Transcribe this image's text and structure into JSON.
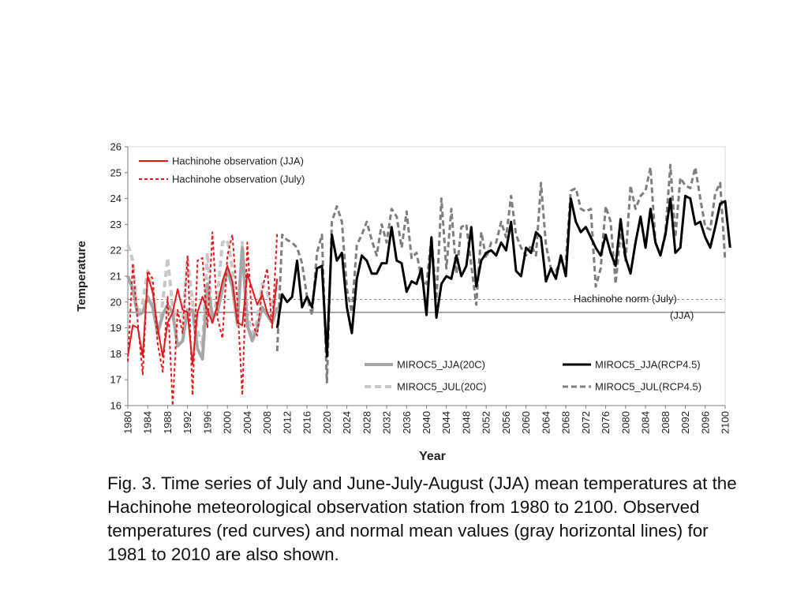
{
  "caption": "Fig. 3. Time series of July and June-July-August (JJA) mean temperatures at the Hachinohe meteorological observation station from 1980 to 2100. Observed temperatures (red curves) and normal mean values (gray horizontal lines) for 1981 to 2010 are also shown.",
  "colors": {
    "observation": "#e31a1c",
    "model_20c": "#a6a6a6",
    "model_20c_jul": "#c8c8c8",
    "model_rcp": "#000000",
    "model_rcp_jul": "#7f7f7f",
    "norm": "#8c8c8c"
  },
  "chart_data": {
    "type": "line",
    "title": "",
    "xlabel": "Year",
    "ylabel": "Temperature",
    "xlim": [
      1980,
      2100
    ],
    "ylim": [
      16,
      26
    ],
    "x_ticks": [
      "1980",
      "1984",
      "1988",
      "1992",
      "1996",
      "2000",
      "2004",
      "2008",
      "2012",
      "2016",
      "2020",
      "2024",
      "2028",
      "2032",
      "2036",
      "2040",
      "2044",
      "2048",
      "2052",
      "2056",
      "2060",
      "2064",
      "2068",
      "2072",
      "2076",
      "2080",
      "2084",
      "2088",
      "2092",
      "2096",
      "2100"
    ],
    "y_ticks": [
      "16",
      "17",
      "18",
      "19",
      "20",
      "21",
      "22",
      "23",
      "24",
      "25",
      "26"
    ],
    "grid": false,
    "reference_lines": [
      {
        "label": "Hachinohe norm (July)",
        "value": 20.1,
        "style": "dashed"
      },
      {
        "label": "(JJA)",
        "value": 19.6,
        "style": "solid"
      }
    ],
    "series": [
      {
        "name": "Hachinohe observation (JJA)",
        "style": "solid",
        "legend": "top-left",
        "x_start": 1980,
        "values": [
          17.9,
          19.1,
          19.0,
          17.9,
          21.0,
          20.4,
          19.0,
          17.9,
          19.2,
          19.6,
          20.5,
          19.7,
          19.6,
          17.6,
          19.6,
          20.2,
          19.7,
          19.2,
          19.9,
          20.8,
          21.4,
          20.8,
          19.2,
          19.1,
          21.1,
          20.5,
          19.9,
          20.3,
          19.6,
          19.2,
          20.9
        ]
      },
      {
        "name": "Hachinohe observation (July)",
        "style": "dashed",
        "legend": "top-left",
        "x_start": 1980,
        "values": [
          17.7,
          21.5,
          19.2,
          17.2,
          21.2,
          20.9,
          18.4,
          17.3,
          20.2,
          16.0,
          19.7,
          18.8,
          21.8,
          16.4,
          21.6,
          21.7,
          19.0,
          22.7,
          19.4,
          18.6,
          21.8,
          22.6,
          20.0,
          16.4,
          22.3,
          19.2,
          18.7,
          20.5,
          21.3,
          19.0,
          22.7
        ]
      },
      {
        "name": "MIROC5_JJA(20C)",
        "style": "solid",
        "legend": "bottom-center",
        "x_start": 1980,
        "values": [
          21.0,
          20.5,
          19.5,
          19.6,
          20.2,
          19.8,
          18.8,
          19.5,
          19.9,
          19.6,
          18.3,
          18.5,
          19.7,
          19.7,
          18.2,
          17.8,
          20.7,
          19.4,
          19.6,
          20.5,
          21.2,
          20.6,
          19.2,
          22.1,
          19.1,
          18.5,
          19.0,
          19.8,
          19.5,
          19.2,
          19.8
        ]
      },
      {
        "name": "MIROC5_JUL(20C)",
        "style": "dashed",
        "legend": "bottom-center",
        "x_start": 1980,
        "values": [
          22.2,
          21.6,
          19.5,
          20.0,
          21.2,
          20.4,
          18.6,
          20.0,
          21.7,
          19.8,
          19.4,
          19.2,
          21.7,
          20.0,
          18.9,
          18.3,
          21.9,
          19.2,
          20.2,
          22.3,
          22.4,
          21.3,
          19.1,
          22.3,
          19.6,
          18.6,
          19.3,
          20.7,
          20.4,
          19.8,
          20.8
        ]
      },
      {
        "name": "MIROC5_JJA(RCP4.5)",
        "style": "solid",
        "legend": "bottom-right",
        "x_start": 2010,
        "values": [
          19.0,
          20.3,
          20.0,
          20.2,
          21.6,
          19.8,
          20.2,
          19.8,
          21.3,
          21.4,
          17.9,
          22.6,
          21.6,
          21.9,
          19.8,
          18.8,
          20.9,
          21.8,
          21.6,
          21.1,
          21.1,
          21.5,
          21.5,
          22.9,
          21.6,
          21.5,
          20.4,
          20.8,
          20.7,
          21.3,
          19.5,
          22.5,
          19.4,
          20.7,
          21.0,
          20.9,
          21.8,
          21.0,
          21.4,
          22.9,
          20.6,
          21.6,
          21.9,
          22.0,
          21.8,
          22.3,
          22.0,
          23.1,
          21.2,
          21.0,
          22.1,
          21.9,
          22.7,
          22.5,
          20.8,
          21.3,
          20.9,
          21.8,
          21.0,
          24.0,
          23.1,
          22.7,
          22.9,
          22.5,
          22.1,
          21.8,
          22.6,
          21.9,
          21.4,
          23.2,
          21.7,
          21.1,
          22.3,
          23.3,
          22.1,
          23.6,
          22.3,
          21.8,
          22.6,
          24.0,
          21.9,
          22.1,
          24.1,
          24.0,
          23.0,
          23.1,
          22.5,
          22.1,
          22.9,
          23.8,
          23.9,
          22.1
        ]
      },
      {
        "name": "MIROC5_JUL(RCP4.5)",
        "style": "dashed",
        "legend": "bottom-right",
        "x_start": 2010,
        "values": [
          18.1,
          22.6,
          22.4,
          22.3,
          22.1,
          21.5,
          20.2,
          19.5,
          21.9,
          22.6,
          16.9,
          23.1,
          23.7,
          23.1,
          20.5,
          19.6,
          22.2,
          22.6,
          23.1,
          22.4,
          21.8,
          23.0,
          22.3,
          23.6,
          23.3,
          22.1,
          23.5,
          21.7,
          21.9,
          20.9,
          20.7,
          22.5,
          20.1,
          24.0,
          21.3,
          23.6,
          21.1,
          22.9,
          23.0,
          21.4,
          19.9,
          22.7,
          21.7,
          22.3,
          22.3,
          23.1,
          22.5,
          24.1,
          22.6,
          22.1,
          21.8,
          22.2,
          21.8,
          24.6,
          22.2,
          21.3,
          21.2,
          21.6,
          21.6,
          24.3,
          24.4,
          23.6,
          23.5,
          23.6,
          20.6,
          21.3,
          23.7,
          23.1,
          20.7,
          22.7,
          21.6,
          24.5,
          23.6,
          24.1,
          24.3,
          25.2,
          22.3,
          21.8,
          22.7,
          25.3,
          22.5,
          24.8,
          24.5,
          24.4,
          25.2,
          24.0,
          22.9,
          22.8,
          24.2,
          24.6,
          21.6
        ]
      }
    ]
  }
}
